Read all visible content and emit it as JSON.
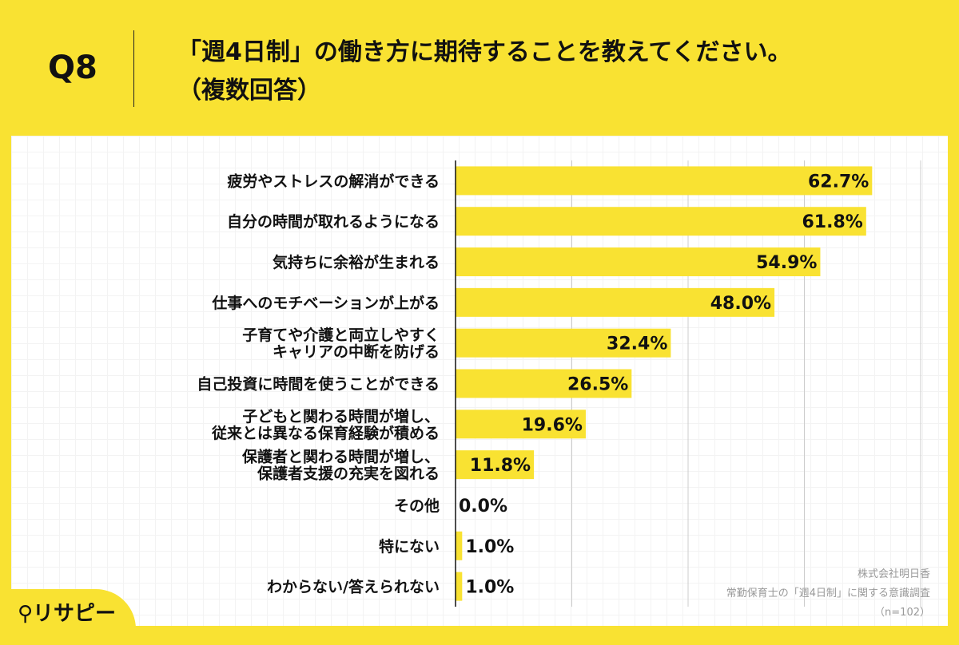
{
  "header": {
    "question_no": "Q8",
    "title_line1": "「週4日制」の働き方に期待することを教えてください。",
    "title_line2": "（複数回答）"
  },
  "source": {
    "company": "株式会社明日香",
    "survey": "常勤保育士の「週4日制」に関する意識調査",
    "n": "（n=102）"
  },
  "logo": {
    "text": "リサピー"
  },
  "colors": {
    "bar": "#F9E232",
    "background": "#F9E232",
    "axis": "#111111",
    "grid": "#cccccc"
  },
  "chart_data": {
    "type": "bar",
    "orientation": "horizontal",
    "categories": [
      [
        "疲労やストレスの解消ができる"
      ],
      [
        "自分の時間が取れるようになる"
      ],
      [
        "気持ちに余裕が生まれる"
      ],
      [
        "仕事へのモチベーションが上がる"
      ],
      [
        "子育てや介護と両立しやすく",
        "キャリアの中断を防げる"
      ],
      [
        "自己投資に時間を使うことができる"
      ],
      [
        "子どもと関わる時間が増し、",
        "従来とは異なる保育経験が積める"
      ],
      [
        "保護者と関わる時間が増し、",
        "保護者支援の充実を図れる"
      ],
      [
        "その他"
      ],
      [
        "特にない"
      ],
      [
        "わからない/答えられない"
      ]
    ],
    "values": [
      62.7,
      61.8,
      54.9,
      48.0,
      32.4,
      26.5,
      19.6,
      11.8,
      0.0,
      1.0,
      1.0
    ],
    "value_labels": [
      "62.7%",
      "61.8%",
      "54.9%",
      "48.0%",
      "32.4%",
      "26.5%",
      "19.6%",
      "11.8%",
      "0.0%",
      "1.0%",
      "1.0%"
    ],
    "xlim": [
      0,
      70
    ],
    "grid": true,
    "unit": "%"
  }
}
